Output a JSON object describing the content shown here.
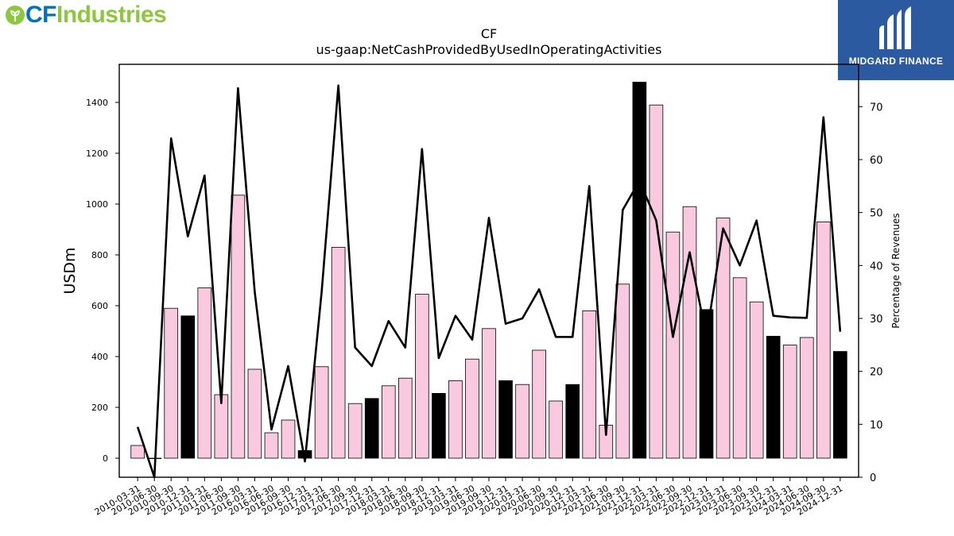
{
  "logo": {
    "part1": "CF",
    "part2": "Industries"
  },
  "brand": {
    "name": "MIDGARD FINANCE"
  },
  "colors": {
    "bar_pink": "#f9c9e0",
    "bar_black": "#000000",
    "line": "#000000",
    "logo_blue": "#0072bc",
    "logo_green": "#8dc63f",
    "brand_bg": "#2c5aa0"
  },
  "chart_data": {
    "type": "bar",
    "title": "CF",
    "subtitle": "us-gaap:NetCashProvidedByUsedInOperatingActivities",
    "ylabel": "USDm",
    "y2label": "Percentage of Revenues",
    "ylim": [
      -75,
      1550
    ],
    "y2lim": [
      0,
      78
    ],
    "yticks": [
      0,
      200,
      400,
      600,
      800,
      1000,
      1200,
      1400
    ],
    "y2ticks": [
      0,
      10,
      20,
      30,
      40,
      50,
      60,
      70
    ],
    "grid": false,
    "categories": [
      "2010-03-31",
      "2010-06-30",
      "2010-09-30",
      "2010-12-31",
      "2011-03-31",
      "2011-06-30",
      "2011-09-30",
      "2016-03-31",
      "2016-06-30",
      "2016-09-30",
      "2016-12-31",
      "2017-03-31",
      "2017-06-30",
      "2017-09-30",
      "2017-12-31",
      "2018-03-31",
      "2018-06-30",
      "2018-09-30",
      "2018-12-31",
      "2019-03-31",
      "2019-06-30",
      "2019-09-30",
      "2019-12-31",
      "2020-03-31",
      "2020-06-30",
      "2020-09-30",
      "2020-12-31",
      "2021-03-31",
      "2021-06-30",
      "2021-09-30",
      "2021-12-31",
      "2022-03-31",
      "2022-06-30",
      "2022-09-30",
      "2022-12-31",
      "2023-03-31",
      "2023-06-30",
      "2023-09-30",
      "2023-12-31",
      "2024-03-31",
      "2024-06-30",
      "2024-09-30",
      "2024-12-31"
    ],
    "series": [
      {
        "type": "bar",
        "axis": "left",
        "values": [
          50,
          0,
          590,
          560,
          670,
          250,
          1035,
          350,
          100,
          150,
          30,
          360,
          830,
          215,
          235,
          285,
          315,
          645,
          255,
          305,
          390,
          510,
          305,
          290,
          425,
          225,
          290,
          580,
          130,
          685,
          1480,
          1390,
          890,
          990,
          585,
          945,
          710,
          615,
          480,
          445,
          475,
          930,
          420
        ],
        "highlight": [
          false,
          false,
          false,
          true,
          false,
          false,
          false,
          false,
          false,
          false,
          true,
          false,
          false,
          false,
          true,
          false,
          false,
          false,
          true,
          false,
          false,
          false,
          true,
          false,
          false,
          false,
          true,
          false,
          false,
          false,
          true,
          false,
          false,
          false,
          true,
          false,
          false,
          false,
          true,
          false,
          false,
          false,
          true
        ]
      },
      {
        "type": "line",
        "axis": "right",
        "values": [
          9.5,
          0,
          64,
          45.5,
          57,
          14,
          73.5,
          35,
          9,
          21,
          3,
          35,
          74,
          24.5,
          21,
          29.5,
          24.5,
          62,
          22.5,
          30.5,
          26,
          49,
          29,
          30,
          35.5,
          26.5,
          26.5,
          55,
          8,
          50.5,
          56,
          48.5,
          26.5,
          42.5,
          26.5,
          47,
          40,
          48.5,
          30.5,
          30.2,
          30.1,
          68,
          27.5
        ]
      }
    ]
  }
}
